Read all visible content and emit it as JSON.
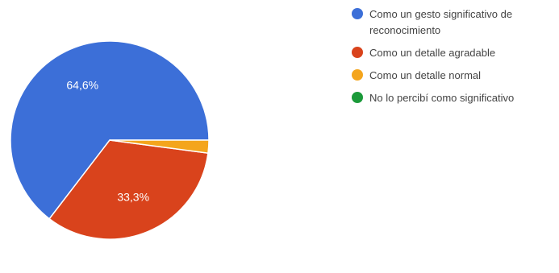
{
  "chart_data": {
    "type": "pie",
    "categories": [
      "Como un gesto significativo de reconocimiento",
      "Como un detalle agradable",
      "Como un detalle normal",
      "No lo percibí como significativo"
    ],
    "values": [
      64.6,
      33.3,
      2.1,
      0
    ],
    "value_labels": [
      "64,6%",
      "33,3%",
      "",
      ""
    ],
    "colors": [
      "#3c6fd8",
      "#d9431c",
      "#f4a51d",
      "#1b9a3a"
    ],
    "legend_position": "right"
  }
}
